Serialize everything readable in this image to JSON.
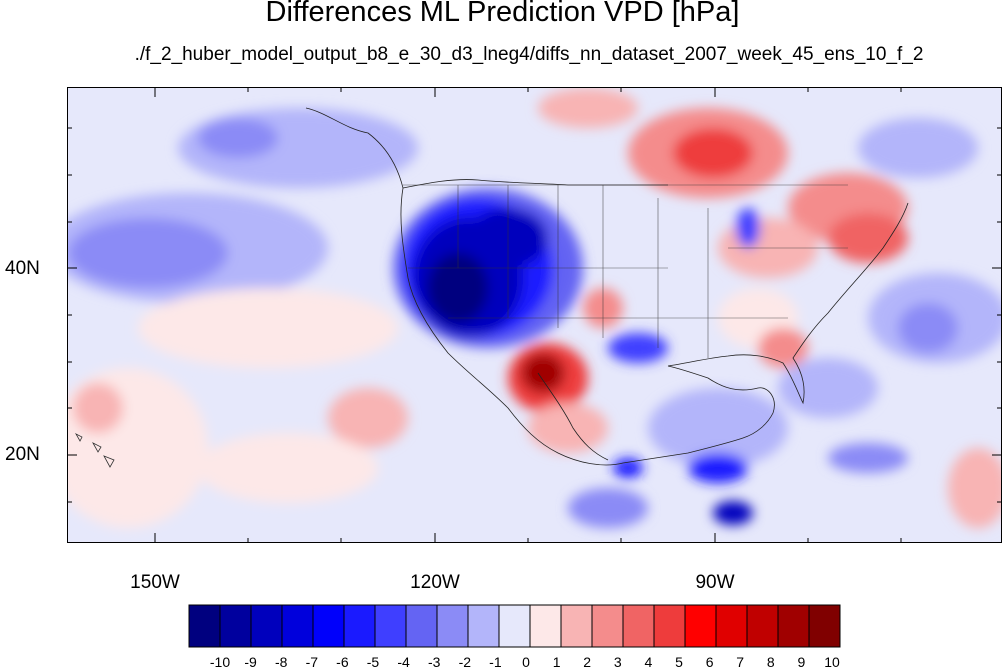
{
  "title": "Differences ML Prediction VPD [hPa]",
  "subtitle": "./f_2_huber_model_output_b8_e_30_d3_lneg4/diffs_nn_dataset_2007_week_45_ens_10_f_2",
  "map": {
    "projection": "cylindrical-equidistant",
    "lat_labels": [
      "40N",
      "20N"
    ],
    "lon_labels": [
      "150W",
      "120W",
      "90W"
    ],
    "colors": {
      "neg_strong": "#00007f",
      "neg_mid": "#1a1aff",
      "neg_light": "#aab0f5",
      "neutral": "#e6e8fb",
      "pos_light": "#fcd6d6",
      "pos_mid": "#f26a6a",
      "pos_strong": "#9c0000"
    }
  },
  "colorbar": {
    "labels": [
      "-10",
      "-9",
      "-8",
      "-7",
      "-6",
      "-5",
      "-4",
      "-3",
      "-2",
      "-1",
      "0",
      "1",
      "2",
      "3",
      "4",
      "5",
      "6",
      "7",
      "8",
      "9",
      "10"
    ],
    "colors": [
      "#00007f",
      "#00009e",
      "#0000bd",
      "#0000dc",
      "#0000fb",
      "#1a1aff",
      "#3f3fff",
      "#6464f3",
      "#8b8bf6",
      "#b3b5fa",
      "#e6e8fb",
      "#fde8e8",
      "#f8b4b4",
      "#f48c8c",
      "#f06464",
      "#ee3c3c",
      "#ff0000",
      "#e00000",
      "#c00000",
      "#a00000",
      "#800000"
    ]
  }
}
